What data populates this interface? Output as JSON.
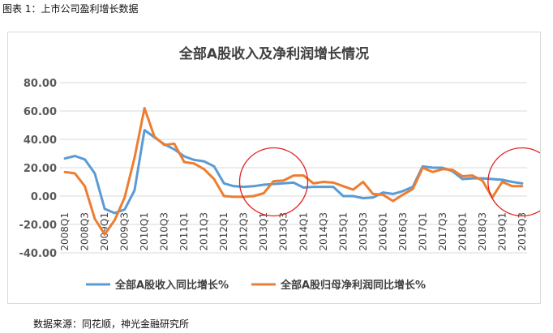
{
  "figure_caption": "图表 1：上市公司盈利增长数据",
  "source_note": "数据来源：同花顺，神光金融研究所",
  "colors": {
    "revenue_line": "#5B9BD5",
    "profit_line": "#ED7D31",
    "gridline": "#d9d9d9",
    "highlight_circle": "#E02020"
  },
  "chart_data": {
    "type": "line",
    "title": "全部A股收入及净利润增长情况",
    "xlabel": "",
    "ylabel": "",
    "ylim": [
      -40,
      80
    ],
    "yticks": [
      80,
      60,
      40,
      20,
      0,
      -20,
      -40
    ],
    "ytick_labels": [
      "80.00",
      "60.00",
      "40.00",
      "20.00",
      "0.00",
      "-20.00",
      "-40.00"
    ],
    "grid": true,
    "legend_position": "bottom",
    "x": [
      "2008Q1",
      "2008Q2",
      "2008Q3",
      "2008Q4",
      "2009Q1",
      "2009Q2",
      "2009Q3",
      "2009Q4",
      "2010Q1",
      "2010Q2",
      "2010Q3",
      "2010Q4",
      "2011Q1",
      "2011Q2",
      "2011Q3",
      "2011Q4",
      "2012Q1",
      "2012Q2",
      "2012Q3",
      "2012Q4",
      "2013Q1",
      "2013Q2",
      "2013Q3",
      "2013Q4",
      "2014Q1",
      "2014Q2",
      "2014Q3",
      "2014Q4",
      "2015Q1",
      "2015Q2",
      "2015Q3",
      "2015Q4",
      "2016Q1",
      "2016Q2",
      "2016Q3",
      "2016Q4",
      "2017Q1",
      "2017Q2",
      "2017Q3",
      "2017Q4",
      "2018Q1",
      "2018Q2",
      "2018Q3",
      "2018Q4",
      "2019Q1",
      "2019Q2",
      "2019Q3"
    ],
    "x_tick_labels": [
      "2008Q1",
      "2008Q3",
      "2009Q1",
      "2009Q3",
      "2010Q1",
      "2010Q3",
      "2011Q1",
      "2011Q3",
      "2012Q1",
      "2012Q3",
      "2013Q1",
      "2013Q3",
      "2014Q1",
      "2014Q3",
      "2015Q1",
      "2015Q3",
      "2016Q1",
      "2016Q3",
      "2017Q1",
      "2017Q3",
      "2018Q1",
      "2018Q3",
      "2019Q1",
      "2019Q3"
    ],
    "series": [
      {
        "name": "全部A股收入同比增长%",
        "color": "#5B9BD5",
        "values": [
          26.5,
          28.3,
          25.8,
          16.0,
          -9.0,
          -12.0,
          -9.5,
          4.0,
          46.5,
          41.5,
          36.5,
          33.0,
          28.0,
          25.5,
          24.5,
          21.0,
          9.0,
          7.0,
          6.5,
          7.0,
          8.0,
          8.5,
          9.0,
          9.5,
          6.0,
          6.5,
          6.5,
          6.5,
          0.0,
          0.0,
          -1.5,
          -1.0,
          2.5,
          1.5,
          3.5,
          6.5,
          21.0,
          20.0,
          20.0,
          17.5,
          12.0,
          12.5,
          12.5,
          12.0,
          11.5,
          10.0,
          9.0
        ]
      },
      {
        "name": "全部A股归母净利润同比增长%",
        "color": "#ED7D31",
        "values": [
          17.0,
          16.0,
          7.0,
          -16.0,
          -27.0,
          -17.0,
          -1.0,
          27.0,
          62.0,
          42.0,
          36.0,
          37.0,
          24.0,
          23.0,
          19.0,
          12.0,
          0.0,
          -0.5,
          -0.5,
          0.0,
          2.0,
          10.5,
          11.0,
          14.5,
          14.5,
          9.0,
          10.0,
          9.5,
          7.0,
          4.5,
          10.0,
          1.5,
          1.0,
          -3.5,
          1.0,
          5.0,
          20.0,
          17.0,
          19.0,
          18.5,
          14.0,
          14.5,
          11.0,
          -1.0,
          10.0,
          7.0,
          7.0
        ]
      }
    ],
    "annotations": [
      {
        "type": "circle",
        "x": "2013Q2",
        "y": 10
      },
      {
        "type": "circle",
        "x": "2019Q3",
        "y": 10
      }
    ]
  }
}
